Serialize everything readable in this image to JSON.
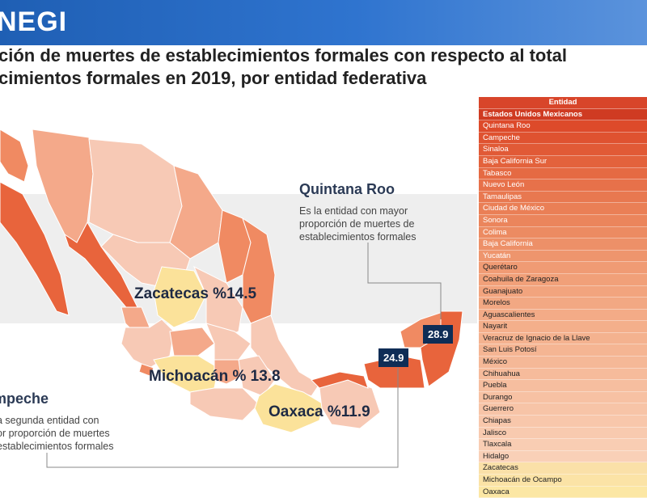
{
  "header": {
    "logo": "NEGI",
    "title_line1": "ción de muertes de establecimientos formales con respecto al total",
    "title_line2": "cimientos formales en 2019, por entidad federativa"
  },
  "map": {
    "labels": {
      "zacatecas": "Zacatecas %14.5",
      "michoacan": "Michoacán % 13.8",
      "oaxaca": "Oaxaca %11.9"
    },
    "badges": {
      "quintana_roo": "28.9",
      "campeche": "24.9"
    },
    "callouts": {
      "quintana_roo": {
        "title": "Quintana Roo",
        "lines": [
          "Es la entidad con mayor",
          "proporción de muertes de",
          "establecimientos formales"
        ]
      },
      "campeche": {
        "title": "mpeche",
        "lines": [
          "a segunda entidad con",
          "or proporción de muertes",
          "establecimientos formales"
        ]
      }
    },
    "colors": {
      "highest": "#e8643c",
      "high": "#f08a62",
      "mid": "#f4a98a",
      "low": "#f7c9b5",
      "lowest": "#fbe29a",
      "callout_badge": "#0f2d56"
    }
  },
  "table": {
    "header": "Entidad",
    "subheader": "Estados Unidos Mexicanos",
    "rows": [
      {
        "name": "Quintana Roo",
        "color": "#dd4a2a",
        "white": true
      },
      {
        "name": "Campeche",
        "color": "#df5230",
        "white": true
      },
      {
        "name": "Sinaloa",
        "color": "#e15a36",
        "white": true
      },
      {
        "name": "Baja California Sur",
        "color": "#e3623c",
        "white": true
      },
      {
        "name": "Tabasco",
        "color": "#e56a43",
        "white": true
      },
      {
        "name": "Nuevo León",
        "color": "#e7714a",
        "white": true
      },
      {
        "name": "Tamaulipas",
        "color": "#e87850",
        "white": true
      },
      {
        "name": "Ciudad de México",
        "color": "#ea7f56",
        "white": true
      },
      {
        "name": "Sonora",
        "color": "#eb855c",
        "white": true
      },
      {
        "name": "Colima",
        "color": "#ec8b62",
        "white": true
      },
      {
        "name": "Baja California",
        "color": "#ed9068",
        "white": true
      },
      {
        "name": "Yucatán",
        "color": "#ee956d",
        "white": true
      },
      {
        "name": "Querétaro",
        "color": "#f09b74",
        "white": false
      },
      {
        "name": "Coahuila de Zaragoza",
        "color": "#f1a079",
        "white": false
      },
      {
        "name": "Guanajuato",
        "color": "#f2a47e",
        "white": false
      },
      {
        "name": "Morelos",
        "color": "#f2a883",
        "white": false
      },
      {
        "name": "Aguascalientes",
        "color": "#f3ab87",
        "white": false
      },
      {
        "name": "Nayarit",
        "color": "#f4af8b",
        "white": false
      },
      {
        "name": "Veracruz de Ignacio de la Llave",
        "color": "#f4b28f",
        "white": false
      },
      {
        "name": "San Luis Potosí",
        "color": "#f5b593",
        "white": false
      },
      {
        "name": "México",
        "color": "#f5b897",
        "white": false
      },
      {
        "name": "Chihuahua",
        "color": "#f6bb9b",
        "white": false
      },
      {
        "name": "Puebla",
        "color": "#f6be9f",
        "white": false
      },
      {
        "name": "Durango",
        "color": "#f7c1a3",
        "white": false
      },
      {
        "name": "Guerrero",
        "color": "#f7c4a7",
        "white": false
      },
      {
        "name": "Chiapas",
        "color": "#f8c7ab",
        "white": false
      },
      {
        "name": "Jalisco",
        "color": "#f8caaf",
        "white": false
      },
      {
        "name": "Tlaxcala",
        "color": "#f9cdb3",
        "white": false
      },
      {
        "name": "Hidalgo",
        "color": "#f9d0b7",
        "white": false
      },
      {
        "name": "Zacatecas",
        "color": "#fae0a8",
        "white": false
      },
      {
        "name": "Michoacán de Ocampo",
        "color": "#fbe3a6",
        "white": false
      },
      {
        "name": "Oaxaca",
        "color": "#fce7a4",
        "white": false
      }
    ]
  }
}
